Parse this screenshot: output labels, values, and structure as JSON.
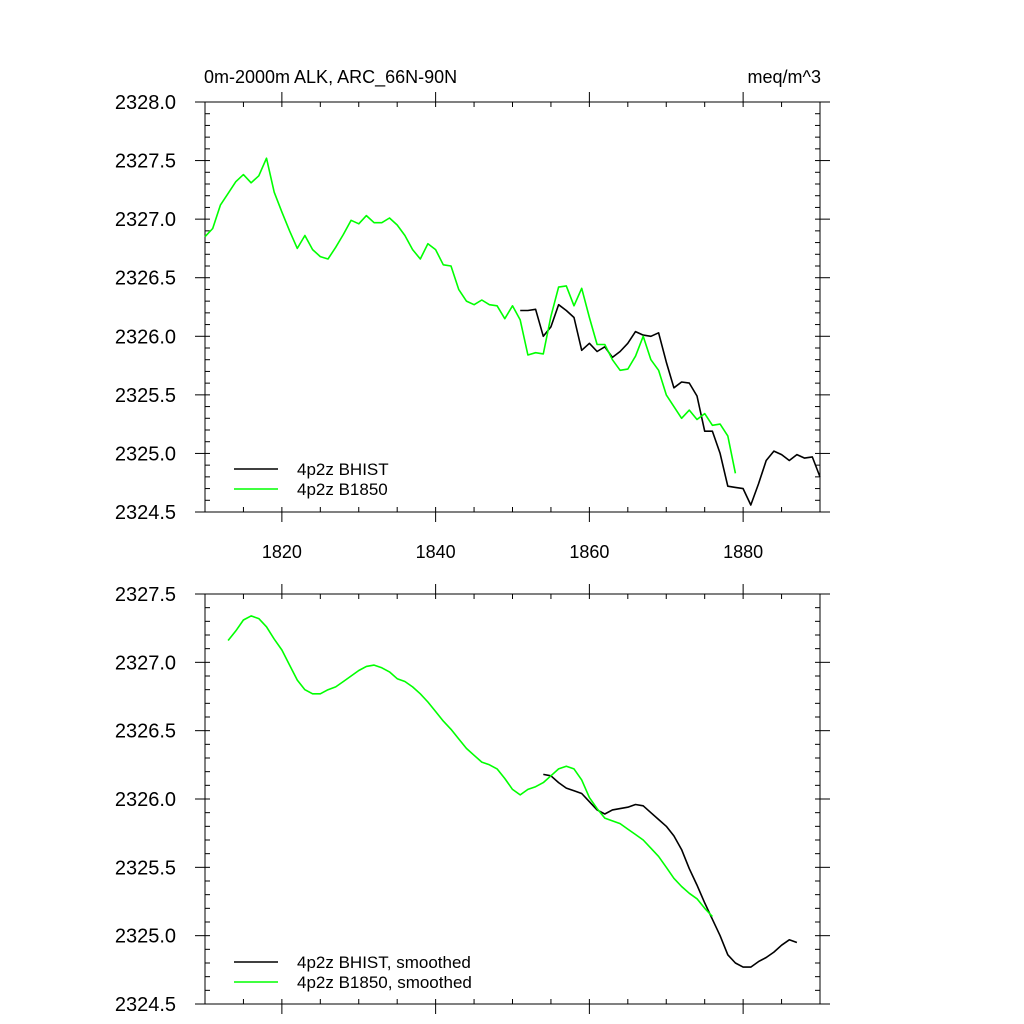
{
  "chart_data": [
    {
      "type": "line",
      "title": "0m-2000m ALK, ARC_66N-90N",
      "units_label": "meq/m^3",
      "xlim": [
        1810,
        1890
      ],
      "ylim": [
        2324.5,
        2328.0
      ],
      "x_ticks": [
        1820,
        1840,
        1860,
        1880
      ],
      "x_tick_labels": [
        "1820",
        "1840",
        "1860",
        "1880"
      ],
      "y_ticks": [
        2324.5,
        2325.0,
        2325.5,
        2326.0,
        2326.5,
        2327.0,
        2327.5,
        2328.0
      ],
      "y_tick_labels": [
        "2324.5",
        "2325.0",
        "2325.5",
        "2326.0",
        "2326.5",
        "2327.0",
        "2327.5",
        "2328.0"
      ],
      "legend_position": "bottom-left",
      "series": [
        {
          "name": "4p2z BHIST",
          "color": "#000000",
          "x": [
            1851,
            1852,
            1853,
            1854,
            1855,
            1856,
            1857,
            1858,
            1859,
            1860,
            1861,
            1862,
            1863,
            1864,
            1865,
            1866,
            1867,
            1868,
            1869,
            1870,
            1871,
            1872,
            1873,
            1874,
            1875,
            1876,
            1877,
            1878,
            1879,
            1880,
            1881,
            1882,
            1883,
            1884,
            1885,
            1886,
            1887,
            1888,
            1889,
            1890
          ],
          "y": [
            2326.22,
            2326.22,
            2326.23,
            2326.0,
            2326.08,
            2326.27,
            2326.22,
            2326.16,
            2325.88,
            2325.94,
            2325.87,
            2325.91,
            2325.82,
            2325.87,
            2325.94,
            2326.04,
            2326.01,
            2326.0,
            2326.03,
            2325.78,
            2325.56,
            2325.61,
            2325.6,
            2325.49,
            2325.19,
            2325.19,
            2325.0,
            2324.72,
            2324.71,
            2324.7,
            2324.56,
            2324.74,
            2324.94,
            2325.02,
            2324.99,
            2324.94,
            2324.99,
            2324.96,
            2324.97,
            2324.8
          ]
        },
        {
          "name": "4p2z B1850",
          "color": "#00ff00",
          "x": [
            1810,
            1811,
            1812,
            1813,
            1814,
            1815,
            1816,
            1817,
            1818,
            1819,
            1820,
            1821,
            1822,
            1823,
            1824,
            1825,
            1826,
            1827,
            1828,
            1829,
            1830,
            1831,
            1832,
            1833,
            1834,
            1835,
            1836,
            1837,
            1838,
            1839,
            1840,
            1841,
            1842,
            1843,
            1844,
            1845,
            1846,
            1847,
            1848,
            1849,
            1850,
            1851,
            1852,
            1853,
            1854,
            1855,
            1856,
            1857,
            1858,
            1859,
            1860,
            1861,
            1862,
            1863,
            1864,
            1865,
            1866,
            1867,
            1868,
            1869,
            1870,
            1871,
            1872,
            1873,
            1874,
            1875,
            1876,
            1877,
            1878,
            1879
          ],
          "y": [
            2326.85,
            2326.92,
            2327.12,
            2327.22,
            2327.32,
            2327.38,
            2327.31,
            2327.37,
            2327.52,
            2327.23,
            2327.06,
            2326.9,
            2326.75,
            2326.86,
            2326.74,
            2326.68,
            2326.66,
            2326.76,
            2326.87,
            2326.99,
            2326.96,
            2327.03,
            2326.97,
            2326.97,
            2327.01,
            2326.95,
            2326.86,
            2326.74,
            2326.66,
            2326.79,
            2326.74,
            2326.61,
            2326.6,
            2326.4,
            2326.3,
            2326.27,
            2326.31,
            2326.27,
            2326.26,
            2326.15,
            2326.26,
            2326.14,
            2325.84,
            2325.86,
            2325.85,
            2326.17,
            2326.42,
            2326.43,
            2326.26,
            2326.41,
            2326.16,
            2325.93,
            2325.93,
            2325.8,
            2325.71,
            2325.72,
            2325.83,
            2326.0,
            2325.8,
            2325.71,
            2325.5,
            2325.4,
            2325.3,
            2325.37,
            2325.29,
            2325.34,
            2325.24,
            2325.25,
            2325.15,
            2324.83
          ]
        }
      ]
    },
    {
      "type": "line",
      "xlim": [
        1810,
        1890
      ],
      "ylim": [
        2324.5,
        2327.5
      ],
      "x_ticks": [
        1820,
        1840,
        1860,
        1880
      ],
      "x_tick_labels": [],
      "y_ticks": [
        2324.5,
        2325.0,
        2325.5,
        2326.0,
        2326.5,
        2327.0,
        2327.5
      ],
      "y_tick_labels": [
        "2324.5",
        "2325.0",
        "2325.5",
        "2326.0",
        "2326.5",
        "2327.0",
        "2327.5"
      ],
      "legend_position": "bottom-left",
      "series": [
        {
          "name": "4p2z BHIST, smoothed",
          "color": "#000000",
          "x": [
            1854,
            1855,
            1856,
            1857,
            1858,
            1859,
            1860,
            1861,
            1862,
            1863,
            1864,
            1865,
            1866,
            1867,
            1868,
            1869,
            1870,
            1871,
            1872,
            1873,
            1874,
            1875,
            1876,
            1877,
            1878,
            1879,
            1880,
            1881,
            1882,
            1883,
            1884,
            1885,
            1886,
            1887
          ],
          "y": [
            2326.18,
            2326.17,
            2326.12,
            2326.08,
            2326.06,
            2326.04,
            2325.98,
            2325.92,
            2325.89,
            2325.92,
            2325.93,
            2325.94,
            2325.96,
            2325.95,
            2325.9,
            2325.85,
            2325.8,
            2325.73,
            2325.63,
            2325.49,
            2325.37,
            2325.24,
            2325.12,
            2325.0,
            2324.86,
            2324.8,
            2324.77,
            2324.77,
            2324.81,
            2324.84,
            2324.88,
            2324.93,
            2324.97,
            2324.95
          ]
        },
        {
          "name": "4p2z B1850, smoothed",
          "color": "#00ff00",
          "x": [
            1813,
            1814,
            1815,
            1816,
            1817,
            1818,
            1819,
            1820,
            1821,
            1822,
            1823,
            1824,
            1825,
            1826,
            1827,
            1828,
            1829,
            1830,
            1831,
            1832,
            1833,
            1834,
            1835,
            1836,
            1837,
            1838,
            1839,
            1840,
            1841,
            1842,
            1843,
            1844,
            1845,
            1846,
            1847,
            1848,
            1849,
            1850,
            1851,
            1852,
            1853,
            1854,
            1855,
            1856,
            1857,
            1858,
            1859,
            1860,
            1861,
            1862,
            1863,
            1864,
            1865,
            1866,
            1867,
            1868,
            1869,
            1870,
            1871,
            1872,
            1873,
            1874,
            1875,
            1876
          ],
          "y": [
            2327.16,
            2327.23,
            2327.31,
            2327.34,
            2327.32,
            2327.26,
            2327.17,
            2327.09,
            2326.98,
            2326.87,
            2326.8,
            2326.77,
            2326.77,
            2326.8,
            2326.82,
            2326.86,
            2326.9,
            2326.94,
            2326.97,
            2326.98,
            2326.96,
            2326.93,
            2326.88,
            2326.86,
            2326.82,
            2326.77,
            2326.71,
            2326.64,
            2326.57,
            2326.51,
            2326.44,
            2326.37,
            2326.32,
            2326.27,
            2326.25,
            2326.22,
            2326.15,
            2326.07,
            2326.03,
            2326.07,
            2326.09,
            2326.12,
            2326.17,
            2326.22,
            2326.24,
            2326.22,
            2326.14,
            2326.01,
            2325.93,
            2325.86,
            2325.84,
            2325.82,
            2325.78,
            2325.74,
            2325.7,
            2325.64,
            2325.58,
            2325.5,
            2325.42,
            2325.36,
            2325.31,
            2325.27,
            2325.2,
            2325.14
          ]
        }
      ]
    }
  ]
}
